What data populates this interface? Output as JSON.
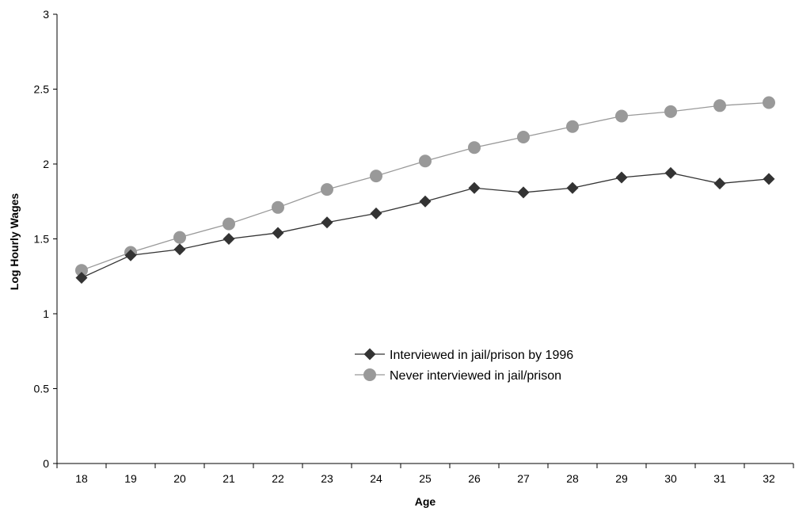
{
  "chart_data": {
    "type": "line",
    "xlabel": "Age",
    "ylabel": "Log Hourly Wages",
    "x": [
      18,
      19,
      20,
      21,
      22,
      23,
      24,
      25,
      26,
      27,
      28,
      29,
      30,
      31,
      32
    ],
    "xtick_labels": [
      "18",
      "19",
      "20",
      "21",
      "22",
      "23",
      "24",
      "25",
      "26",
      "27",
      "28",
      "29",
      "30",
      "31",
      "32"
    ],
    "ylim": [
      0,
      3
    ],
    "yticks": [
      0,
      0.5,
      1,
      1.5,
      2,
      2.5,
      3
    ],
    "ytick_labels": [
      "0",
      "0.5",
      "1",
      "1.5",
      "2",
      "2.5",
      "3"
    ],
    "grid": false,
    "legend_position": "center",
    "series": [
      {
        "name": "Interviewed in jail/prison by 1996",
        "marker": "diamond",
        "color": "#333333",
        "values": [
          1.24,
          1.39,
          1.43,
          1.5,
          1.54,
          1.61,
          1.67,
          1.75,
          1.84,
          1.81,
          1.84,
          1.91,
          1.94,
          1.87,
          1.9
        ]
      },
      {
        "name": "Never interviewed in jail/prison",
        "marker": "circle",
        "color": "#999999",
        "values": [
          1.29,
          1.41,
          1.51,
          1.6,
          1.71,
          1.83,
          1.92,
          2.02,
          2.11,
          2.18,
          2.25,
          2.32,
          2.35,
          2.39,
          2.41
        ]
      }
    ]
  }
}
